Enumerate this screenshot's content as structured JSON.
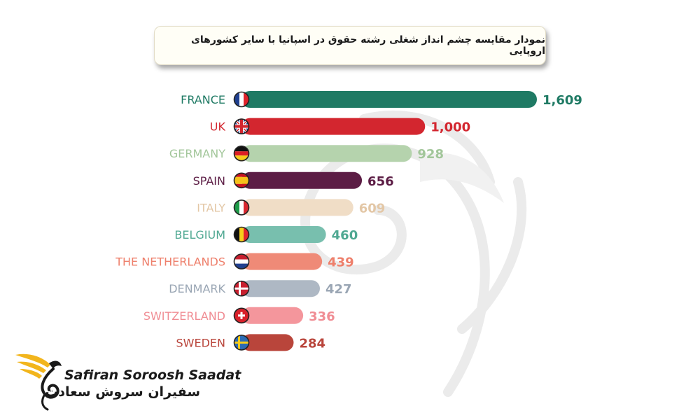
{
  "title": "نمودار مقایسه چشم انداز شغلی رشته حقوق در اسپانیا با سایر کشورهای اروپایی",
  "chart_data": {
    "type": "bar",
    "orientation": "horizontal",
    "categories": [
      "FRANCE",
      "UK",
      "GERMANY",
      "SPAIN",
      "ITALY",
      "BELGIUM",
      "THE NETHERLANDS",
      "DENMARK",
      "SWITZERLAND",
      "SWEDEN"
    ],
    "values": [
      1609,
      1000,
      928,
      656,
      609,
      460,
      439,
      427,
      336,
      284
    ],
    "value_labels": [
      "1,609",
      "1,000",
      "928",
      "656",
      "609",
      "460",
      "439",
      "427",
      "336",
      "284"
    ],
    "colors": [
      "#1f7a64",
      "#d3262f",
      "#b5d3ad",
      "#5c1d45",
      "#f0ddc6",
      "#78bfae",
      "#ef8a77",
      "#aeb8c4",
      "#f4969c",
      "#b9453b"
    ],
    "label_colors": [
      "#1f7a64",
      "#d3262f",
      "#a2c69a",
      "#5c1d45",
      "#e3c7a6",
      "#4fa892",
      "#ee7f6b",
      "#9aa6b4",
      "#f08d94",
      "#b9453b"
    ],
    "flags": [
      "france-flag",
      "uk-flag",
      "germany-flag",
      "spain-flag",
      "italy-flag",
      "belgium-flag",
      "netherlands-flag",
      "denmark-flag",
      "switzerland-flag",
      "sweden-flag"
    ],
    "xlim": [
      0,
      1609
    ],
    "grid": false,
    "legend": "none"
  },
  "logo": {
    "name_en": "Safiran Soroosh Saadat",
    "name_fa": "سفیران سروش سعادت"
  }
}
